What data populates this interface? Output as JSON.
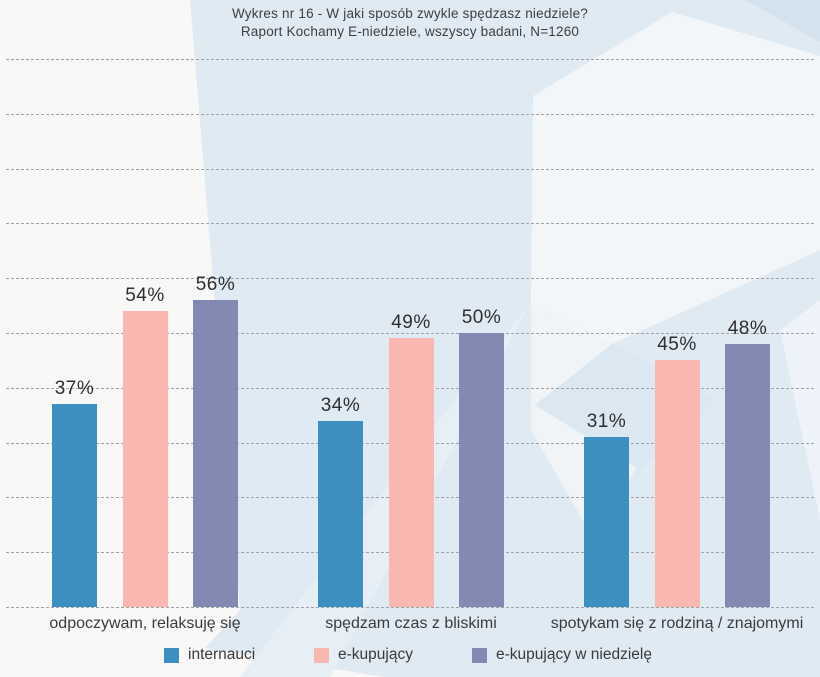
{
  "header": {
    "title": "Wykres nr 16 - W jaki sposób zwykle spędzasz niedziele?",
    "subtitle": "Raport Kochamy E-niedziele, wszyscy badani, N=1260"
  },
  "chart_data": {
    "type": "bar",
    "title": "Wykres nr 16 - W jaki sposób zwykle spędzasz niedziele?",
    "subtitle": "Raport Kochamy E-niedziele, wszyscy badani, N=1260",
    "categories": [
      "odpoczywam, relaksuję się",
      "spędzam czas z bliskimi",
      "spotykam się z rodziną / znajomymi"
    ],
    "series": [
      {
        "name": "internauci",
        "color": "#3d8fc0",
        "values": [
          37,
          34,
          31
        ]
      },
      {
        "name": "e-kupujący",
        "color": "#f9b7b2",
        "values": [
          54,
          49,
          45
        ]
      },
      {
        "name": "e-kupujący w niedzielę",
        "color": "#8289b3",
        "values": [
          56,
          50,
          48
        ]
      }
    ],
    "value_suffix": "%",
    "data_labels": true,
    "ylim": [
      0,
      100
    ],
    "gridlines": "horizontal dashed, every 10%",
    "y_axis_labels_visible": false,
    "legend_position": "bottom"
  },
  "style": {
    "gridline_color": "#9c9ea1",
    "background_left": "#f8f8f6",
    "background_right": "#dfeaf3",
    "text_color": "#3a3b3d"
  }
}
